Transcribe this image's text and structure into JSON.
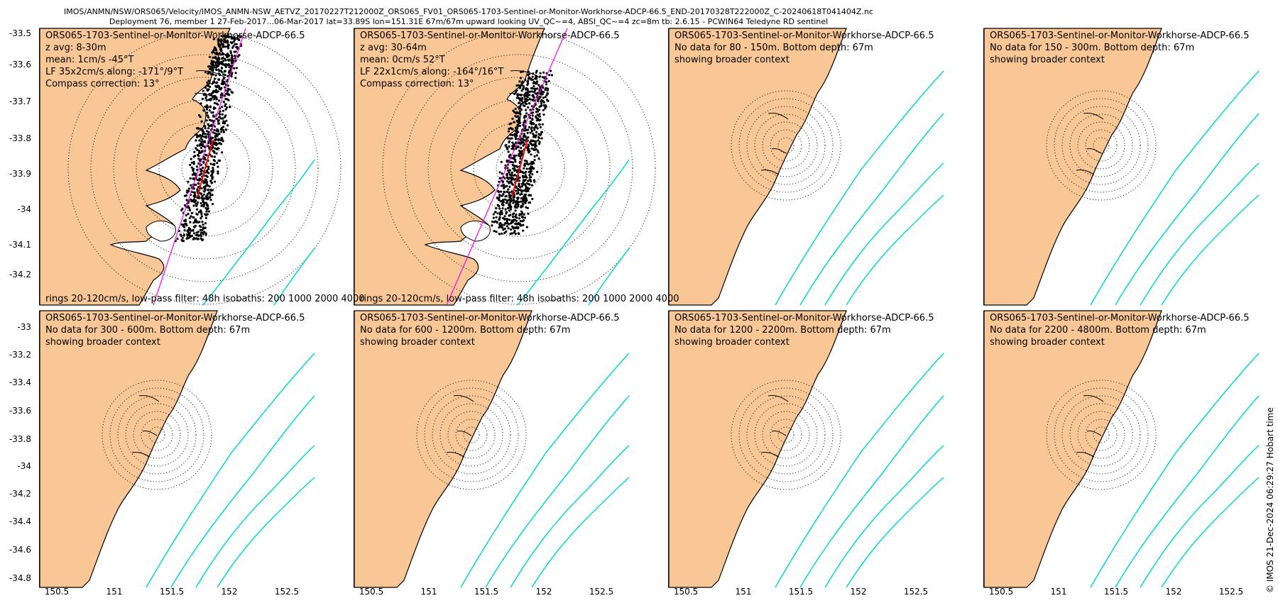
{
  "header": {
    "title_line1": "IMOS/ANMN/NSW/ORS065/Velocity/IMOS_ANMN-NSW_AETVZ_20170227T212000Z_ORS065_FV01_ORS065-1703-Sentinel-or-Monitor-Workhorse-ADCP-66.5_END-20170328T222000Z_C-20240618T041404Z.nc",
    "title_line2": "Deployment 76, member 1 27-Feb-2017...06-Mar-2017 lat=33.89S lon=151.31E 67m/67m upward looking UV_QC~=4, ABSI_QC~=4 zc=8m tb: 2.6.15 - PCWIN64 Teledyne RD sentinel"
  },
  "colors": {
    "land": "#f9c795",
    "coast": "#000000",
    "isobath": "#00d8d8",
    "principal_axis": "#ff00ff",
    "mean_vector": "#ff0000",
    "rings": "#000000"
  },
  "panels": [
    {
      "kind": "data",
      "lines": [
        "ORS065-1703-Sentinel-or-Monitor-Workhorse-ADCP-66.5",
        "z avg: 8-30m",
        "mean: 1cm/s -45°T",
        "LF 35x2cm/s along: -171°/9°T",
        "Compass correction: 13°"
      ],
      "footer": "rings 20-120cm/s, low-pass filter: 48h isobaths: 200 1000 2000 4000"
    },
    {
      "kind": "data",
      "lines": [
        "ORS065-1703-Sentinel-or-Monitor-Workhorse-ADCP-66.5",
        "z avg: 30-64m",
        "mean: 0cm/s 52°T",
        "LF 22x1cm/s along: -164°/16°T",
        "Compass correction: 13°"
      ],
      "footer": "rings 20-120cm/s, low-pass filter: 48h isobaths: 200 1000 2000 4000"
    },
    {
      "kind": "context",
      "lines": [
        "ORS065-1703-Sentinel-or-Monitor-Workhorse-ADCP-66.5",
        "No data for 80 - 150m. Bottom depth: 67m",
        "showing broader context"
      ]
    },
    {
      "kind": "context",
      "lines": [
        "ORS065-1703-Sentinel-or-Monitor-Workhorse-ADCP-66.5",
        "No data for 150 - 300m. Bottom depth: 67m",
        "showing broader context"
      ]
    },
    {
      "kind": "context",
      "lines": [
        "ORS065-1703-Sentinel-or-Monitor-Workhorse-ADCP-66.5",
        "No data for 300 - 600m. Bottom depth: 67m",
        "showing broader context"
      ]
    },
    {
      "kind": "context",
      "lines": [
        "ORS065-1703-Sentinel-or-Monitor-Workhorse-ADCP-66.5",
        "No data for 600 - 1200m. Bottom depth: 67m",
        "showing broader context"
      ]
    },
    {
      "kind": "context",
      "lines": [
        "ORS065-1703-Sentinel-or-Monitor-Workhorse-ADCP-66.5",
        "No data for 1200 - 2200m. Bottom depth: 67m",
        "showing broader context"
      ]
    },
    {
      "kind": "context",
      "lines": [
        "ORS065-1703-Sentinel-or-Monitor-Workhorse-ADCP-66.5",
        "No data for 2200 - 4800m. Bottom depth: 67m",
        "showing broader context"
      ]
    }
  ],
  "axes": {
    "top_row_yticks": [
      "-33.5",
      "-33.6",
      "-33.7",
      "-33.8",
      "-33.9",
      "-34",
      "-34.1",
      "-34.2"
    ],
    "bottom_row_yticks": [
      "-33",
      "-33.2",
      "-33.4",
      "-33.6",
      "-33.8",
      "-34",
      "-34.2",
      "-34.4",
      "-34.6",
      "-34.8"
    ],
    "xticks": [
      "150.5",
      "151",
      "151.5",
      "152",
      "152.5"
    ]
  },
  "credit": "© IMOS 21-Dec-2024 06:29:27 Hobart time"
}
